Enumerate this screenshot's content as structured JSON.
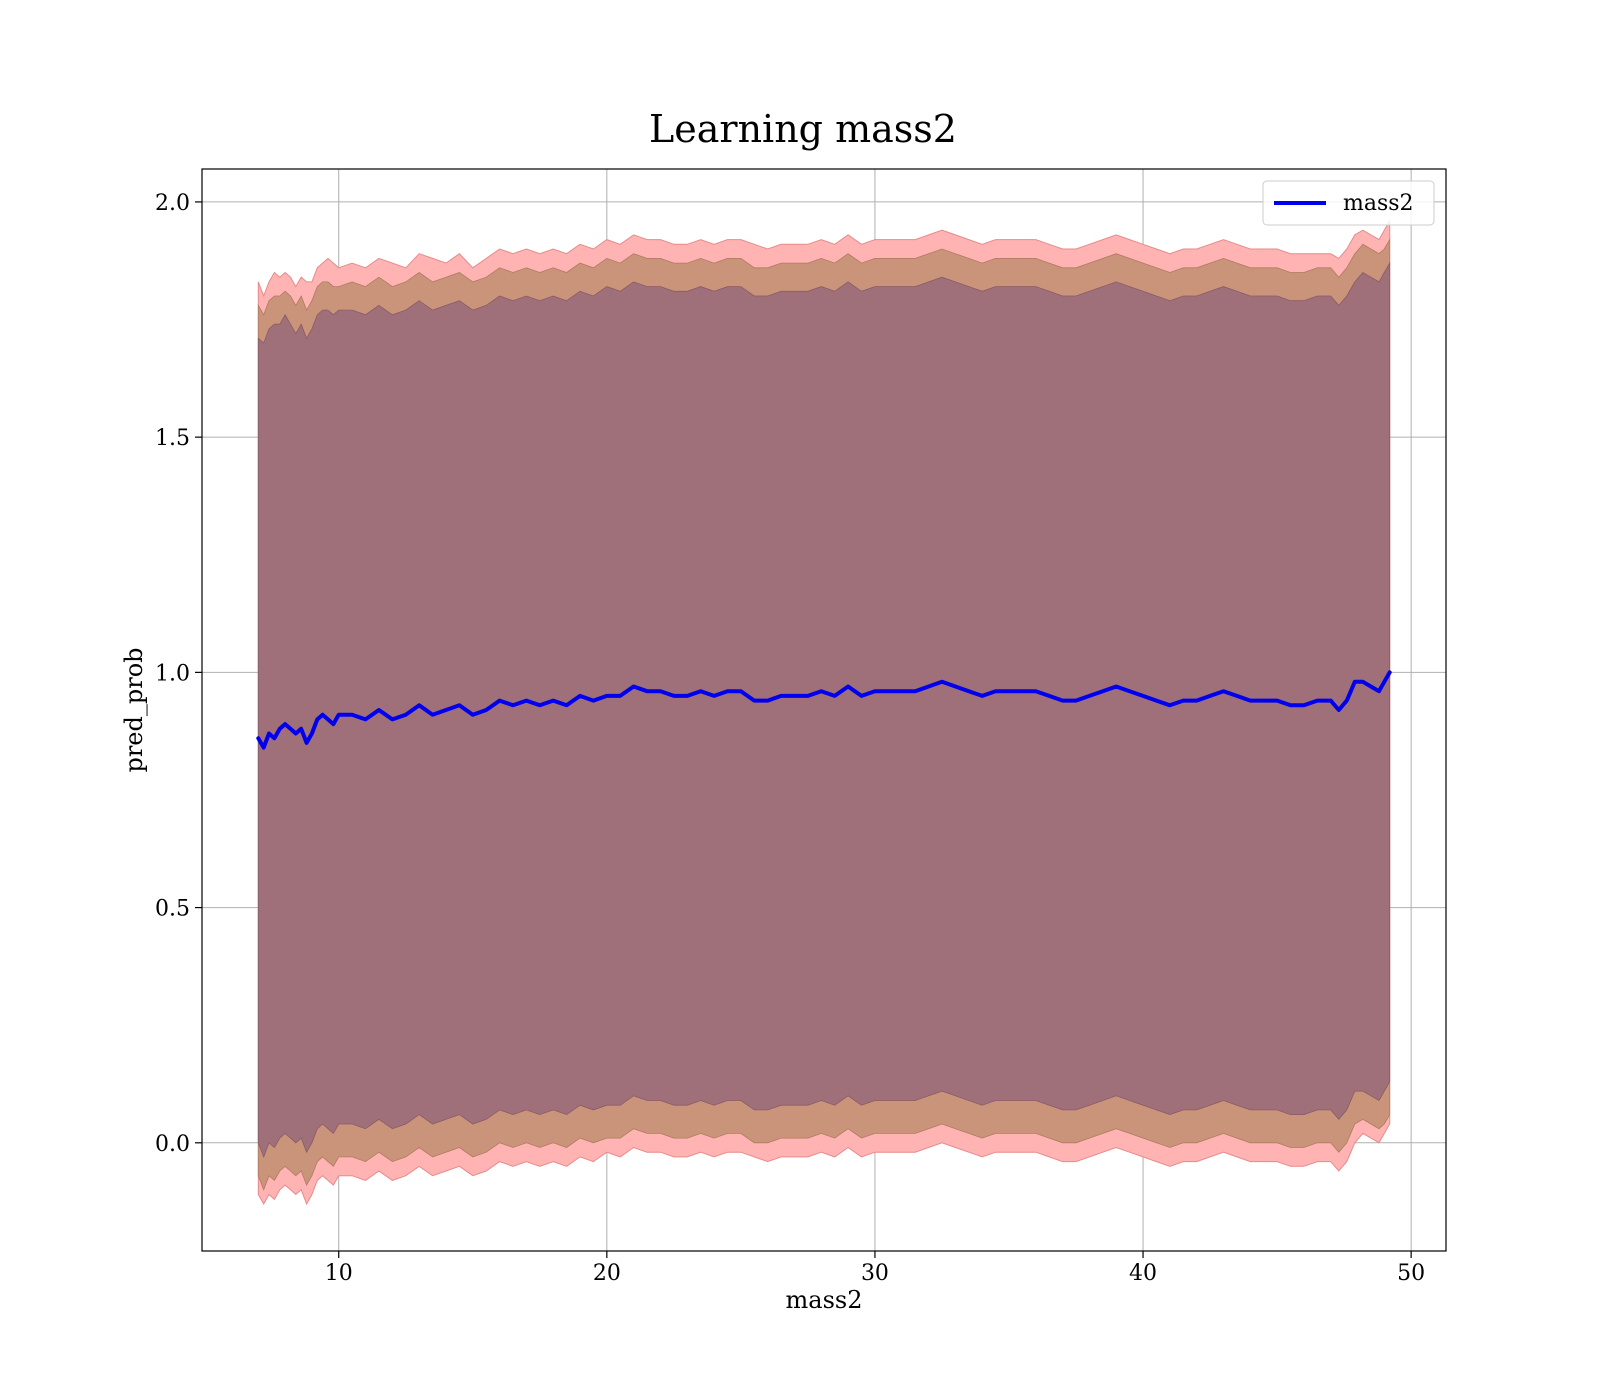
{
  "chart_data": {
    "type": "line",
    "title": "Learning mass2",
    "xlabel": "mass2",
    "ylabel": "pred_prob",
    "xlim": [
      4.9,
      51.3
    ],
    "ylim": [
      -0.23,
      2.07
    ],
    "xticks": [
      10,
      20,
      30,
      40,
      50
    ],
    "yticks": [
      0.0,
      0.5,
      1.0,
      1.5,
      2.0
    ],
    "xtick_labels": [
      "10",
      "20",
      "30",
      "40",
      "50"
    ],
    "ytick_labels": [
      "0.0",
      "0.5",
      "1.0",
      "1.5",
      "2.0"
    ],
    "grid": true,
    "legend": {
      "position": "top-right",
      "entries": [
        "mass2"
      ]
    },
    "colors": {
      "line": "#0000ee",
      "band_outer": "#ffb3b3",
      "band_middle": "#c9947a",
      "band_inner": "#a0707a",
      "grid": "#b0b0b0"
    },
    "series": [
      {
        "name": "mass2",
        "x": [
          7.0,
          7.2,
          7.4,
          7.6,
          7.8,
          8.0,
          8.2,
          8.4,
          8.6,
          8.8,
          9.0,
          9.2,
          9.4,
          9.6,
          9.8,
          10.0,
          10.5,
          11.0,
          11.5,
          12.0,
          12.5,
          13.0,
          13.5,
          14.0,
          14.5,
          15.0,
          15.5,
          16.0,
          16.5,
          17.0,
          17.5,
          18.0,
          18.5,
          19.0,
          19.5,
          20.0,
          20.5,
          21.0,
          21.5,
          22.0,
          22.5,
          23.0,
          23.5,
          24.0,
          24.5,
          25.0,
          25.5,
          26.0,
          26.5,
          27.0,
          27.5,
          28.0,
          28.5,
          29.0,
          29.5,
          30.0,
          30.5,
          31.0,
          31.5,
          32.0,
          32.5,
          33.0,
          33.5,
          34.0,
          34.5,
          35.0,
          35.5,
          36.0,
          36.5,
          37.0,
          37.5,
          38.0,
          38.5,
          39.0,
          39.5,
          40.0,
          40.5,
          41.0,
          41.5,
          42.0,
          42.5,
          43.0,
          43.5,
          44.0,
          44.5,
          45.0,
          45.5,
          46.0,
          46.5,
          47.0,
          47.3,
          47.6,
          47.9,
          48.2,
          48.5,
          48.8,
          49.0,
          49.2
        ],
        "y": [
          0.86,
          0.84,
          0.87,
          0.86,
          0.88,
          0.89,
          0.88,
          0.87,
          0.88,
          0.85,
          0.87,
          0.9,
          0.91,
          0.9,
          0.89,
          0.91,
          0.91,
          0.9,
          0.92,
          0.9,
          0.91,
          0.93,
          0.91,
          0.92,
          0.93,
          0.91,
          0.92,
          0.94,
          0.93,
          0.94,
          0.93,
          0.94,
          0.93,
          0.95,
          0.94,
          0.95,
          0.95,
          0.97,
          0.96,
          0.96,
          0.95,
          0.95,
          0.96,
          0.95,
          0.96,
          0.96,
          0.94,
          0.94,
          0.95,
          0.95,
          0.95,
          0.96,
          0.95,
          0.97,
          0.95,
          0.96,
          0.96,
          0.96,
          0.96,
          0.97,
          0.98,
          0.97,
          0.96,
          0.95,
          0.96,
          0.96,
          0.96,
          0.96,
          0.95,
          0.94,
          0.94,
          0.95,
          0.96,
          0.97,
          0.96,
          0.95,
          0.94,
          0.93,
          0.94,
          0.94,
          0.95,
          0.96,
          0.95,
          0.94,
          0.94,
          0.94,
          0.93,
          0.93,
          0.94,
          0.94,
          0.92,
          0.94,
          0.98,
          0.98,
          0.97,
          0.96,
          0.98,
          1.0
        ]
      }
    ],
    "bands": {
      "outer_upper": [
        1.83,
        1.8,
        1.83,
        1.85,
        1.84,
        1.85,
        1.84,
        1.82,
        1.84,
        1.83,
        1.83,
        1.86,
        1.87,
        1.88,
        1.87,
        1.86,
        1.87,
        1.86,
        1.88,
        1.87,
        1.86,
        1.89,
        1.88,
        1.87,
        1.89,
        1.86,
        1.88,
        1.9,
        1.89,
        1.9,
        1.89,
        1.9,
        1.89,
        1.91,
        1.9,
        1.92,
        1.91,
        1.93,
        1.92,
        1.92,
        1.91,
        1.91,
        1.92,
        1.91,
        1.92,
        1.92,
        1.91,
        1.9,
        1.91,
        1.91,
        1.91,
        1.92,
        1.91,
        1.93,
        1.91,
        1.92,
        1.92,
        1.92,
        1.92,
        1.93,
        1.94,
        1.93,
        1.92,
        1.91,
        1.92,
        1.92,
        1.92,
        1.92,
        1.91,
        1.9,
        1.9,
        1.91,
        1.92,
        1.93,
        1.92,
        1.91,
        1.9,
        1.89,
        1.9,
        1.9,
        1.91,
        1.92,
        1.91,
        1.9,
        1.9,
        1.9,
        1.89,
        1.89,
        1.89,
        1.89,
        1.88,
        1.9,
        1.93,
        1.94,
        1.93,
        1.92,
        1.94,
        1.96
      ],
      "middle_upper": [
        1.78,
        1.76,
        1.79,
        1.8,
        1.8,
        1.81,
        1.8,
        1.78,
        1.8,
        1.77,
        1.79,
        1.82,
        1.83,
        1.83,
        1.82,
        1.82,
        1.83,
        1.82,
        1.84,
        1.82,
        1.83,
        1.85,
        1.83,
        1.84,
        1.85,
        1.83,
        1.84,
        1.86,
        1.85,
        1.86,
        1.85,
        1.86,
        1.85,
        1.87,
        1.86,
        1.88,
        1.87,
        1.89,
        1.88,
        1.88,
        1.87,
        1.87,
        1.88,
        1.87,
        1.88,
        1.88,
        1.86,
        1.86,
        1.87,
        1.87,
        1.87,
        1.88,
        1.87,
        1.89,
        1.87,
        1.88,
        1.88,
        1.88,
        1.88,
        1.89,
        1.9,
        1.89,
        1.88,
        1.87,
        1.88,
        1.88,
        1.88,
        1.88,
        1.87,
        1.86,
        1.86,
        1.87,
        1.88,
        1.89,
        1.88,
        1.87,
        1.86,
        1.85,
        1.86,
        1.86,
        1.87,
        1.88,
        1.87,
        1.86,
        1.86,
        1.86,
        1.85,
        1.85,
        1.86,
        1.86,
        1.84,
        1.86,
        1.89,
        1.91,
        1.9,
        1.89,
        1.9,
        1.92
      ],
      "inner_upper": [
        1.71,
        1.7,
        1.73,
        1.74,
        1.74,
        1.76,
        1.74,
        1.72,
        1.74,
        1.71,
        1.73,
        1.76,
        1.77,
        1.77,
        1.76,
        1.77,
        1.77,
        1.76,
        1.78,
        1.76,
        1.77,
        1.79,
        1.77,
        1.78,
        1.79,
        1.77,
        1.78,
        1.8,
        1.79,
        1.8,
        1.79,
        1.8,
        1.79,
        1.81,
        1.8,
        1.82,
        1.81,
        1.83,
        1.82,
        1.82,
        1.81,
        1.81,
        1.82,
        1.81,
        1.82,
        1.82,
        1.8,
        1.8,
        1.81,
        1.81,
        1.81,
        1.82,
        1.81,
        1.83,
        1.81,
        1.82,
        1.82,
        1.82,
        1.82,
        1.83,
        1.84,
        1.83,
        1.82,
        1.81,
        1.82,
        1.82,
        1.82,
        1.82,
        1.81,
        1.8,
        1.8,
        1.81,
        1.82,
        1.83,
        1.82,
        1.81,
        1.8,
        1.79,
        1.8,
        1.8,
        1.81,
        1.82,
        1.81,
        1.8,
        1.8,
        1.8,
        1.79,
        1.79,
        1.8,
        1.8,
        1.78,
        1.8,
        1.83,
        1.85,
        1.84,
        1.83,
        1.85,
        1.87
      ],
      "inner_lower": [
        0.0,
        -0.03,
        0.0,
        -0.01,
        0.01,
        0.02,
        0.01,
        0.0,
        0.01,
        -0.02,
        0.0,
        0.03,
        0.04,
        0.03,
        0.02,
        0.04,
        0.04,
        0.03,
        0.05,
        0.03,
        0.04,
        0.06,
        0.04,
        0.05,
        0.06,
        0.04,
        0.05,
        0.07,
        0.06,
        0.07,
        0.06,
        0.07,
        0.06,
        0.08,
        0.07,
        0.08,
        0.08,
        0.1,
        0.09,
        0.09,
        0.08,
        0.08,
        0.09,
        0.08,
        0.09,
        0.09,
        0.07,
        0.07,
        0.08,
        0.08,
        0.08,
        0.09,
        0.08,
        0.1,
        0.08,
        0.09,
        0.09,
        0.09,
        0.09,
        0.1,
        0.11,
        0.1,
        0.09,
        0.08,
        0.09,
        0.09,
        0.09,
        0.09,
        0.08,
        0.07,
        0.07,
        0.08,
        0.09,
        0.1,
        0.09,
        0.08,
        0.07,
        0.06,
        0.07,
        0.07,
        0.08,
        0.09,
        0.08,
        0.07,
        0.07,
        0.07,
        0.06,
        0.06,
        0.07,
        0.07,
        0.05,
        0.07,
        0.11,
        0.11,
        0.1,
        0.09,
        0.11,
        0.13
      ],
      "middle_lower": [
        -0.07,
        -0.1,
        -0.07,
        -0.08,
        -0.06,
        -0.05,
        -0.06,
        -0.07,
        -0.06,
        -0.09,
        -0.07,
        -0.04,
        -0.03,
        -0.04,
        -0.05,
        -0.03,
        -0.03,
        -0.04,
        -0.02,
        -0.04,
        -0.03,
        -0.01,
        -0.03,
        -0.02,
        -0.01,
        -0.03,
        -0.02,
        0.0,
        -0.01,
        0.0,
        -0.01,
        0.0,
        -0.01,
        0.01,
        0.0,
        0.01,
        0.01,
        0.03,
        0.02,
        0.02,
        0.01,
        0.01,
        0.02,
        0.01,
        0.02,
        0.02,
        0.0,
        0.0,
        0.01,
        0.01,
        0.01,
        0.02,
        0.01,
        0.03,
        0.01,
        0.02,
        0.02,
        0.02,
        0.02,
        0.03,
        0.04,
        0.03,
        0.02,
        0.01,
        0.02,
        0.02,
        0.02,
        0.02,
        0.01,
        0.0,
        0.0,
        0.01,
        0.02,
        0.03,
        0.02,
        0.01,
        0.0,
        -0.01,
        0.0,
        0.0,
        0.01,
        0.02,
        0.01,
        0.0,
        0.0,
        0.0,
        -0.01,
        -0.01,
        0.0,
        0.0,
        -0.02,
        0.0,
        0.04,
        0.05,
        0.04,
        0.03,
        0.04,
        0.06
      ],
      "outer_lower": [
        -0.11,
        -0.13,
        -0.11,
        -0.12,
        -0.1,
        -0.09,
        -0.1,
        -0.11,
        -0.1,
        -0.13,
        -0.11,
        -0.08,
        -0.07,
        -0.08,
        -0.09,
        -0.07,
        -0.07,
        -0.08,
        -0.06,
        -0.08,
        -0.07,
        -0.05,
        -0.07,
        -0.06,
        -0.05,
        -0.07,
        -0.06,
        -0.04,
        -0.05,
        -0.04,
        -0.05,
        -0.04,
        -0.05,
        -0.03,
        -0.04,
        -0.02,
        -0.03,
        -0.01,
        -0.02,
        -0.02,
        -0.03,
        -0.03,
        -0.02,
        -0.03,
        -0.02,
        -0.02,
        -0.03,
        -0.04,
        -0.03,
        -0.03,
        -0.03,
        -0.02,
        -0.03,
        -0.01,
        -0.03,
        -0.02,
        -0.02,
        -0.02,
        -0.02,
        -0.01,
        0.0,
        -0.01,
        -0.02,
        -0.03,
        -0.02,
        -0.02,
        -0.02,
        -0.02,
        -0.03,
        -0.04,
        -0.04,
        -0.03,
        -0.02,
        -0.01,
        -0.02,
        -0.03,
        -0.04,
        -0.05,
        -0.04,
        -0.04,
        -0.03,
        -0.02,
        -0.03,
        -0.04,
        -0.04,
        -0.04,
        -0.05,
        -0.05,
        -0.04,
        -0.04,
        -0.06,
        -0.04,
        0.0,
        0.02,
        0.01,
        0.0,
        0.02,
        0.04
      ]
    }
  }
}
